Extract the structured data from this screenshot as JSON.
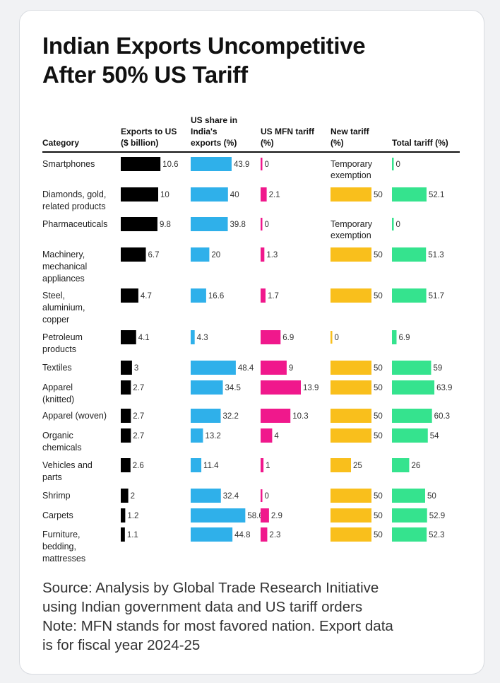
{
  "title_lines": [
    "Indian Exports Uncompetitive",
    "After 50% US Tariff"
  ],
  "footer": {
    "source_lines": [
      "Source: Analysis by Global Trade Research Initiative",
      "using Indian government data and US tariff orders"
    ],
    "note_lines": [
      "Note: MFN stands for most favored nation. Export data",
      "is for fiscal year 2024-25"
    ]
  },
  "chart_data": {
    "type": "table",
    "title": "Indian Exports Uncompetitive After 50% US Tariff",
    "column_headers": [
      {
        "key": "category",
        "lines": [
          "Category"
        ]
      },
      {
        "key": "exports",
        "lines": [
          "Exports to US",
          "($ billion)"
        ],
        "color": "#000000"
      },
      {
        "key": "us_share",
        "lines": [
          "US share in",
          "India's",
          "exports (%)"
        ],
        "color": "#2fb0ea"
      },
      {
        "key": "mfn",
        "lines": [
          "US MFN tariff",
          "(%)"
        ],
        "color": "#f0188c"
      },
      {
        "key": "new_tariff",
        "lines": [
          "New tariff",
          "(%)"
        ],
        "color": "#f9bf1c"
      },
      {
        "key": "total",
        "lines": [
          "Total tariff (%)"
        ],
        "color": "#35e38e"
      }
    ],
    "rows": [
      {
        "category": [
          "Smartphones"
        ],
        "exports": 10.6,
        "exports_label": "10.6",
        "us_share": 43.9,
        "us_share_label": "43.9",
        "mfn": 0,
        "mfn_label": "0",
        "new_tariff": null,
        "new_tariff_text": [
          "Temporary",
          "exemption"
        ],
        "total": 0,
        "total_label": "0"
      },
      {
        "category": [
          "Diamonds, gold,",
          "related products"
        ],
        "exports": 10,
        "exports_label": "10",
        "us_share": 40,
        "us_share_label": "40",
        "mfn": 2.1,
        "mfn_label": "2.1",
        "new_tariff": 50,
        "new_tariff_label": "50",
        "total": 52.1,
        "total_label": "52.1"
      },
      {
        "category": [
          "Pharmaceuticals"
        ],
        "exports": 9.8,
        "exports_label": "9.8",
        "us_share": 39.8,
        "us_share_label": "39.8",
        "mfn": 0,
        "mfn_label": "0",
        "new_tariff": null,
        "new_tariff_text": [
          "Temporary",
          "exemption"
        ],
        "total": 0,
        "total_label": "0"
      },
      {
        "category": [
          "Machinery,",
          "mechanical",
          "appliances"
        ],
        "exports": 6.7,
        "exports_label": "6.7",
        "us_share": 20,
        "us_share_label": "20",
        "mfn": 1.3,
        "mfn_label": "1.3",
        "new_tariff": 50,
        "new_tariff_label": "50",
        "total": 51.3,
        "total_label": "51.3"
      },
      {
        "category": [
          "Steel,",
          "aluminium,",
          "copper"
        ],
        "exports": 4.7,
        "exports_label": "4.7",
        "us_share": 16.6,
        "us_share_label": "16.6",
        "mfn": 1.7,
        "mfn_label": "1.7",
        "new_tariff": 50,
        "new_tariff_label": "50",
        "total": 51.7,
        "total_label": "51.7"
      },
      {
        "category": [
          "Petroleum",
          "products"
        ],
        "exports": 4.1,
        "exports_label": "4.1",
        "us_share": 4.3,
        "us_share_label": "4.3",
        "mfn": 6.9,
        "mfn_label": "6.9",
        "new_tariff": 0,
        "new_tariff_label": "0",
        "total": 6.9,
        "total_label": "6.9"
      },
      {
        "category": [
          "Textiles"
        ],
        "exports": 3,
        "exports_label": "3",
        "us_share": 48.4,
        "us_share_label": "48.4",
        "mfn": 9,
        "mfn_label": "9",
        "new_tariff": 50,
        "new_tariff_label": "50",
        "total": 59,
        "total_label": "59"
      },
      {
        "category": [
          "Apparel",
          "(knitted)"
        ],
        "exports": 2.7,
        "exports_label": "2.7",
        "us_share": 34.5,
        "us_share_label": "34.5",
        "mfn": 13.9,
        "mfn_label": "13.9",
        "new_tariff": 50,
        "new_tariff_label": "50",
        "total": 63.9,
        "total_label": "63.9"
      },
      {
        "category": [
          "Apparel (woven)"
        ],
        "exports": 2.7,
        "exports_label": "2.7",
        "us_share": 32.2,
        "us_share_label": "32.2",
        "mfn": 10.3,
        "mfn_label": "10.3",
        "new_tariff": 50,
        "new_tariff_label": "50",
        "total": 60.3,
        "total_label": "60.3"
      },
      {
        "category": [
          "Organic",
          "chemicals"
        ],
        "exports": 2.7,
        "exports_label": "2.7",
        "us_share": 13.2,
        "us_share_label": "13.2",
        "mfn": 4,
        "mfn_label": "4",
        "new_tariff": 50,
        "new_tariff_label": "50",
        "total": 54,
        "total_label": "54"
      },
      {
        "category": [
          "Vehicles and",
          "parts"
        ],
        "exports": 2.6,
        "exports_label": "2.6",
        "us_share": 11.4,
        "us_share_label": "11.4",
        "mfn": 1,
        "mfn_label": "1",
        "new_tariff": 25,
        "new_tariff_label": "25",
        "total": 26,
        "total_label": "26"
      },
      {
        "category": [
          "Shrimp"
        ],
        "exports": 2,
        "exports_label": "2",
        "us_share": 32.4,
        "us_share_label": "32.4",
        "mfn": 0,
        "mfn_label": "0",
        "new_tariff": 50,
        "new_tariff_label": "50",
        "total": 50,
        "total_label": "50"
      },
      {
        "category": [
          "Carpets"
        ],
        "exports": 1.2,
        "exports_label": "1.2",
        "us_share": 58.6,
        "us_share_label": "58.6",
        "mfn": 2.9,
        "mfn_label": "2.9",
        "new_tariff": 50,
        "new_tariff_label": "50",
        "total": 52.9,
        "total_label": "52.9"
      },
      {
        "category": [
          "Furniture,",
          "bedding,",
          "mattresses"
        ],
        "exports": 1.1,
        "exports_label": "1.1",
        "us_share": 44.8,
        "us_share_label": "44.8",
        "mfn": 2.3,
        "mfn_label": "2.3",
        "new_tariff": 50,
        "new_tariff_label": "50",
        "total": 52.3,
        "total_label": "52.3"
      }
    ]
  }
}
